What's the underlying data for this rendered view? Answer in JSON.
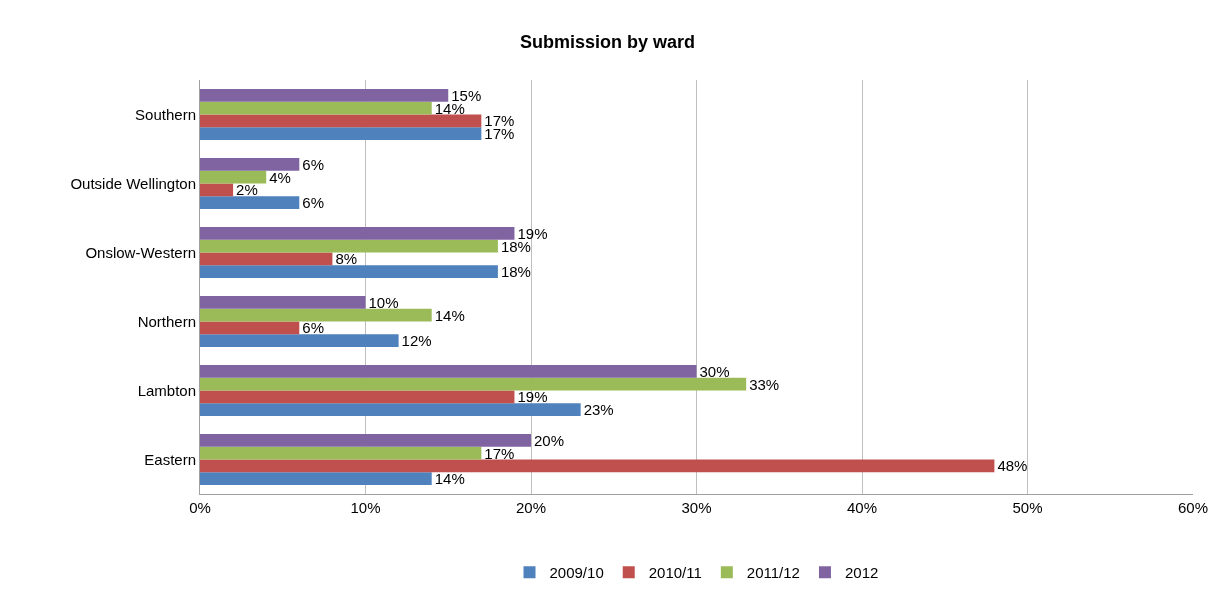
{
  "chart_data": {
    "type": "bar",
    "orientation": "horizontal",
    "title": "Submission by ward",
    "categories": [
      "Southern",
      "Outside Wellington",
      "Onslow-Western",
      "Northern",
      "Lambton",
      "Eastern"
    ],
    "series": [
      {
        "name": "2009/10",
        "color": "#4f81bd",
        "values": [
          17,
          6,
          18,
          12,
          23,
          14
        ],
        "value_labels": [
          "17%",
          "6%",
          "18%",
          "12%",
          "23%",
          "14%"
        ]
      },
      {
        "name": "2010/11",
        "color": "#c0504d",
        "values": [
          17,
          2,
          8,
          6,
          19,
          48
        ],
        "value_labels": [
          "17%",
          "2%",
          "8%",
          "6%",
          "19%",
          "48%"
        ]
      },
      {
        "name": "2011/12",
        "color": "#9bbb59",
        "values": [
          14,
          4,
          18,
          14,
          33,
          17
        ],
        "value_labels": [
          "14%",
          "4%",
          "18%",
          "14%",
          "33%",
          "17%"
        ]
      },
      {
        "name": "2012",
        "color": "#8064a2",
        "values": [
          15,
          6,
          19,
          10,
          30,
          20
        ],
        "value_labels": [
          "15%",
          "6%",
          "19%",
          "10%",
          "30%",
          "20%"
        ]
      }
    ],
    "xlim": [
      0,
      60
    ],
    "xticks": [
      {
        "value": 0,
        "label": "0%"
      },
      {
        "value": 10,
        "label": "10%"
      },
      {
        "value": 20,
        "label": "20%"
      },
      {
        "value": 30,
        "label": "30%"
      },
      {
        "value": 40,
        "label": "40%"
      },
      {
        "value": 50,
        "label": "50%"
      },
      {
        "value": 60,
        "label": "60%"
      }
    ],
    "grid": "x",
    "legend": "bottom"
  }
}
